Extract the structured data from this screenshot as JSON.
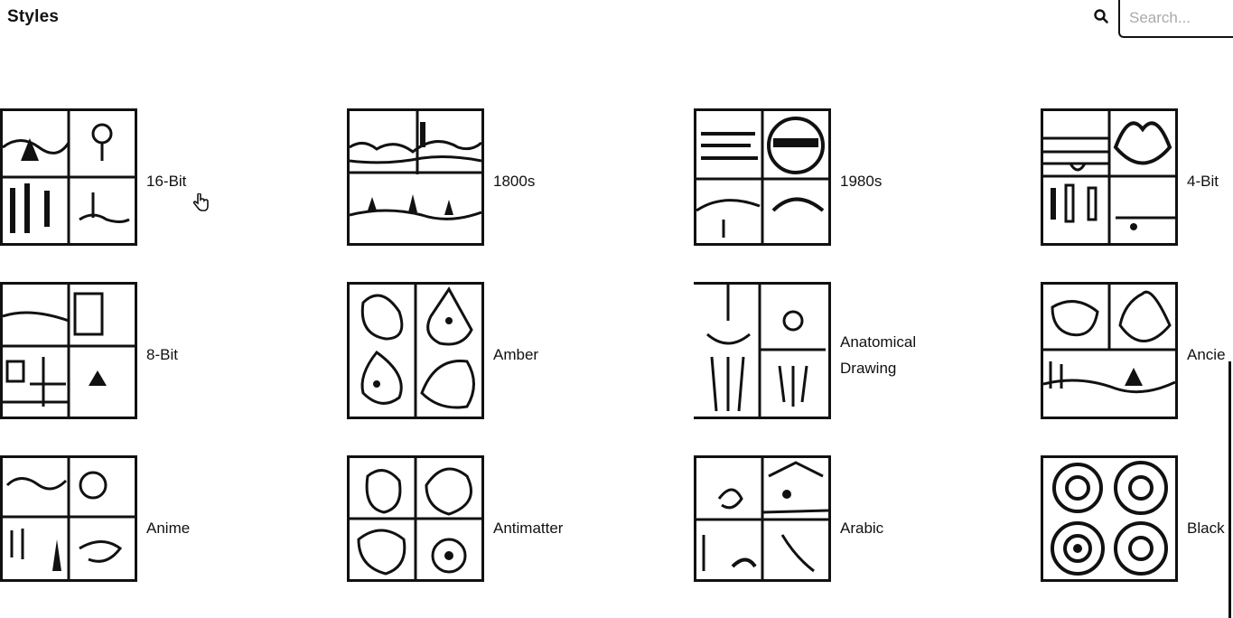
{
  "header": {
    "title": "Styles",
    "search_placeholder": "Search..."
  },
  "styles": [
    {
      "label": "16-Bit"
    },
    {
      "label": "1800s"
    },
    {
      "label": "1980s"
    },
    {
      "label": "4-Bit"
    },
    {
      "label": "8-Bit"
    },
    {
      "label": "Amber"
    },
    {
      "label": "Anatomical Drawing"
    },
    {
      "label": "Ancie"
    },
    {
      "label": "Anime"
    },
    {
      "label": "Antimatter"
    },
    {
      "label": "Arabic"
    },
    {
      "label": "Black"
    }
  ],
  "icons": {
    "search": "search-icon",
    "cursor": "pointer-cursor-icon"
  },
  "colors": {
    "ink": "#111111",
    "background": "#ffffff"
  }
}
